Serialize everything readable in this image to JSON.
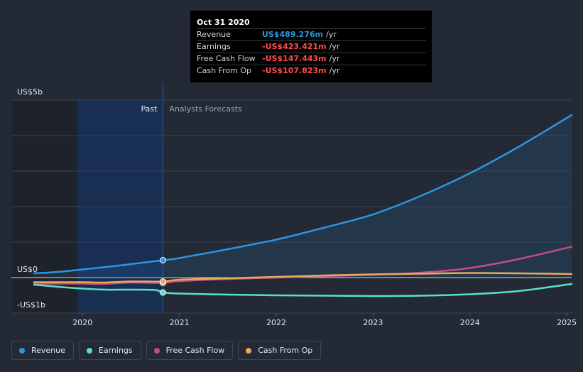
{
  "colors": {
    "background": "#232a36",
    "revenue": "#2d95e0",
    "earnings": "#59e0cd",
    "free_cash_flow": "#c44d86",
    "cash_from_op": "#e8a95c",
    "negative": "#ff4c4c"
  },
  "tooltip": {
    "date": "Oct 31 2020",
    "rows": [
      {
        "label": "Revenue",
        "value": "US$489.276m",
        "unit": "/yr",
        "color": "#2d95e0"
      },
      {
        "label": "Earnings",
        "value": "-US$423.421m",
        "unit": "/yr",
        "color": "#ff4c4c"
      },
      {
        "label": "Free Cash Flow",
        "value": "-US$147.443m",
        "unit": "/yr",
        "color": "#ff4c4c"
      },
      {
        "label": "Cash From Op",
        "value": "-US$107.823m",
        "unit": "/yr",
        "color": "#ff4c4c"
      }
    ]
  },
  "legend": [
    {
      "label": "Revenue",
      "color": "#2d95e0"
    },
    {
      "label": "Earnings",
      "color": "#59e0cd"
    },
    {
      "label": "Free Cash Flow",
      "color": "#c44d86"
    },
    {
      "label": "Cash From Op",
      "color": "#e8a95c"
    }
  ],
  "chart_data": {
    "type": "line",
    "title": "",
    "xlabel": "",
    "ylabel": "",
    "xlim": [
      2019.5,
      2025.05
    ],
    "ylim": [
      -1,
      5
    ],
    "y_axis_labels": [
      {
        "text": "US$5b",
        "value": 5
      },
      {
        "text": "US$0",
        "value": 0
      },
      {
        "text": "-US$1b",
        "value": -1
      }
    ],
    "x_ticks": [
      {
        "label": "2020",
        "value": 2020
      },
      {
        "label": "2021",
        "value": 2021
      },
      {
        "label": "2022",
        "value": 2022
      },
      {
        "label": "2023",
        "value": 2023
      },
      {
        "label": "2024",
        "value": 2024
      },
      {
        "label": "2025",
        "value": 2025
      }
    ],
    "gridlines": [
      1,
      2,
      3,
      4,
      5
    ],
    "past_start": 2019.95,
    "past_label": "Past",
    "forecast_label": "Analysts Forecasts",
    "highlight_x": 2020.83,
    "series": [
      {
        "name": "Revenue",
        "key": "revenue",
        "color": "#2d95e0",
        "fill": true,
        "points": [
          [
            2019.5,
            0.12
          ],
          [
            2019.75,
            0.16
          ],
          [
            2020.0,
            0.23
          ],
          [
            2020.25,
            0.3
          ],
          [
            2020.5,
            0.38
          ],
          [
            2020.83,
            0.49
          ],
          [
            2021.0,
            0.55
          ],
          [
            2021.5,
            0.8
          ],
          [
            2022.0,
            1.07
          ],
          [
            2022.5,
            1.41
          ],
          [
            2023.0,
            1.78
          ],
          [
            2023.5,
            2.31
          ],
          [
            2024.0,
            2.94
          ],
          [
            2024.5,
            3.68
          ],
          [
            2025.05,
            4.58
          ]
        ]
      },
      {
        "name": "Free Cash Flow",
        "key": "free_cash_flow",
        "color": "#c44d86",
        "fill": false,
        "points": [
          [
            2019.5,
            -0.17
          ],
          [
            2020.0,
            -0.17
          ],
          [
            2020.2,
            -0.18
          ],
          [
            2020.5,
            -0.14
          ],
          [
            2020.83,
            -0.15
          ],
          [
            2021.0,
            -0.1
          ],
          [
            2021.5,
            -0.04
          ],
          [
            2022.0,
            0.0
          ],
          [
            2022.5,
            0.04
          ],
          [
            2023.0,
            0.08
          ],
          [
            2023.5,
            0.14
          ],
          [
            2024.0,
            0.27
          ],
          [
            2024.5,
            0.52
          ],
          [
            2025.05,
            0.87
          ]
        ]
      },
      {
        "name": "Cash From Op",
        "key": "cash_from_op",
        "color": "#e8a95c",
        "fill": false,
        "points": [
          [
            2019.5,
            -0.13
          ],
          [
            2020.0,
            -0.13
          ],
          [
            2020.2,
            -0.14
          ],
          [
            2020.5,
            -0.11
          ],
          [
            2020.83,
            -0.11
          ],
          [
            2021.0,
            -0.06
          ],
          [
            2021.5,
            -0.02
          ],
          [
            2022.0,
            0.02
          ],
          [
            2022.5,
            0.06
          ],
          [
            2023.0,
            0.09
          ],
          [
            2023.5,
            0.11
          ],
          [
            2024.0,
            0.13
          ],
          [
            2024.5,
            0.12
          ],
          [
            2025.05,
            0.1
          ]
        ]
      },
      {
        "name": "Earnings",
        "key": "earnings",
        "color": "#59e0cd",
        "fill": false,
        "points": [
          [
            2019.5,
            -0.2
          ],
          [
            2019.75,
            -0.26
          ],
          [
            2020.0,
            -0.31
          ],
          [
            2020.25,
            -0.34
          ],
          [
            2020.5,
            -0.34
          ],
          [
            2020.75,
            -0.35
          ],
          [
            2020.83,
            -0.42
          ],
          [
            2021.0,
            -0.45
          ],
          [
            2021.5,
            -0.48
          ],
          [
            2022.0,
            -0.5
          ],
          [
            2022.5,
            -0.51
          ],
          [
            2023.0,
            -0.52
          ],
          [
            2023.5,
            -0.51
          ],
          [
            2024.0,
            -0.47
          ],
          [
            2024.5,
            -0.38
          ],
          [
            2025.05,
            -0.18
          ]
        ]
      }
    ]
  }
}
